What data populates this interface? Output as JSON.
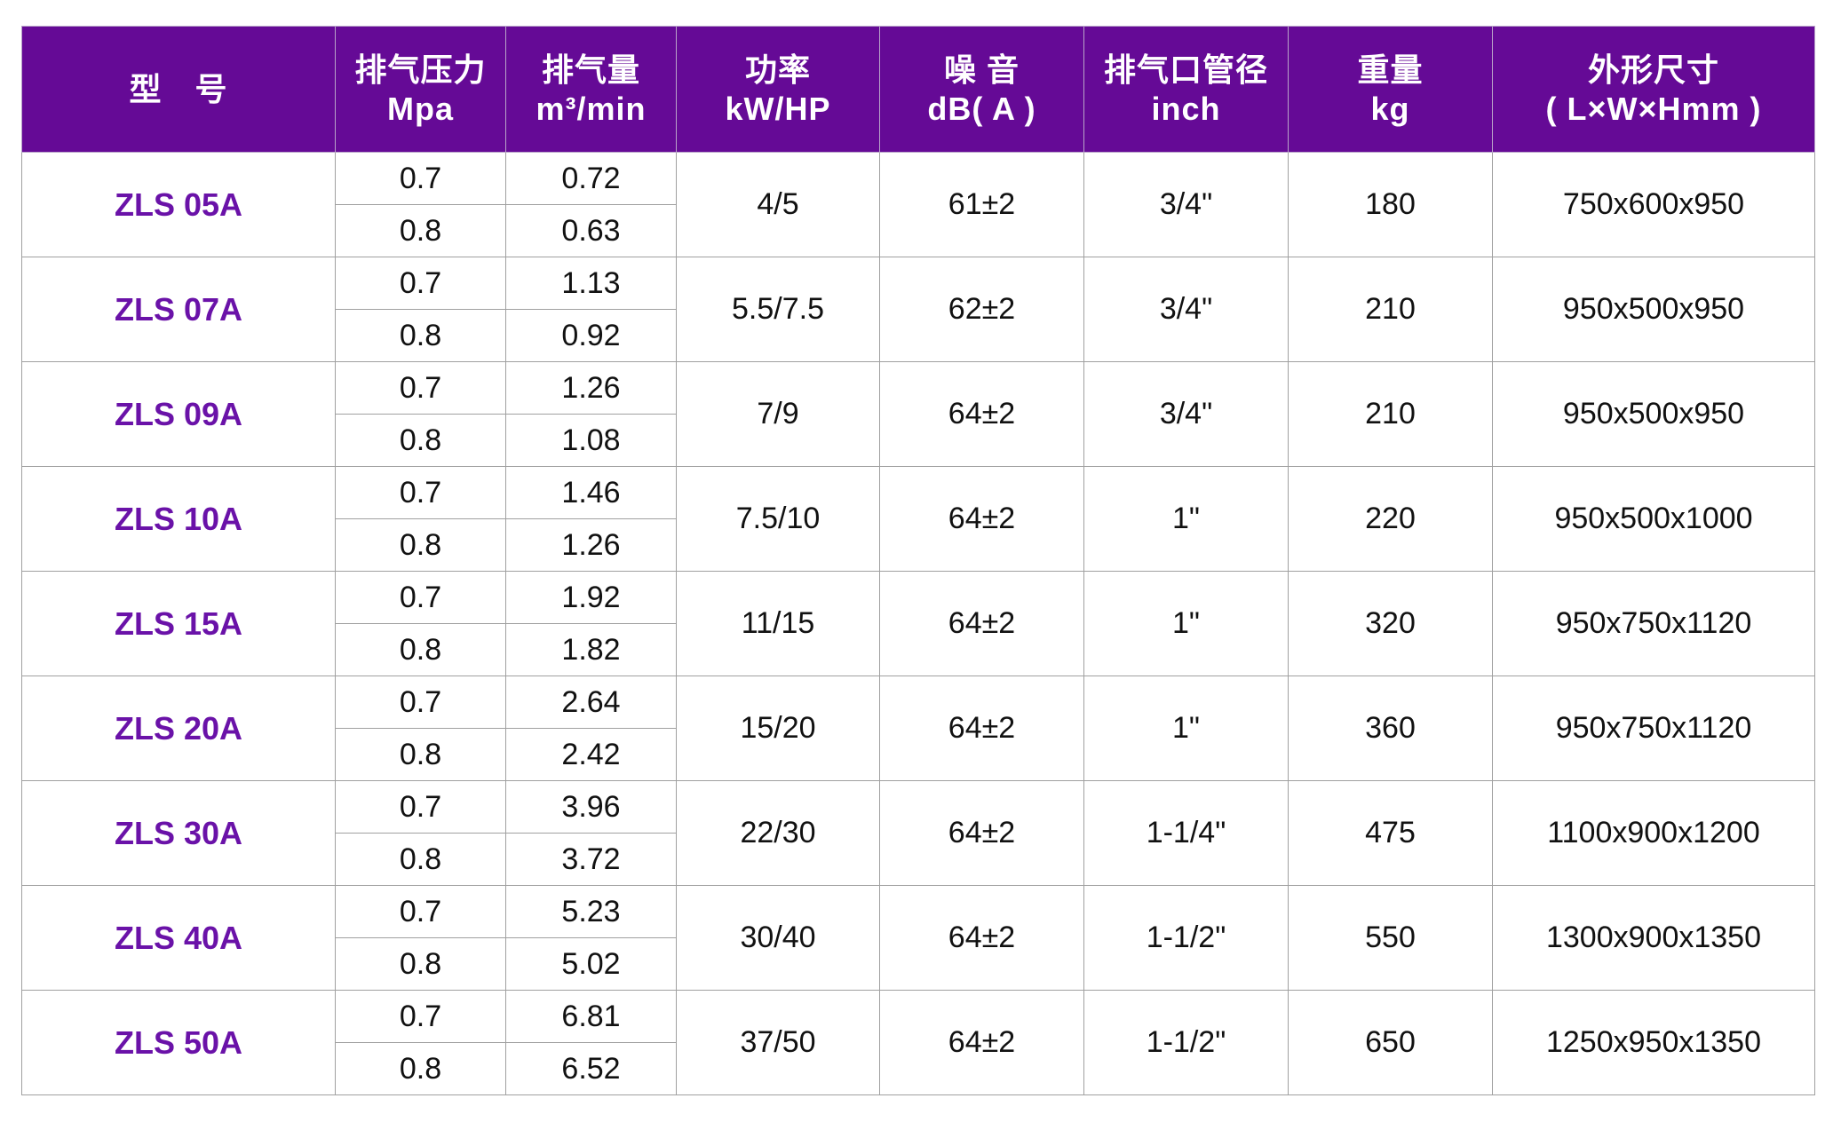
{
  "colors": {
    "header_bg": "#650a96",
    "model_text": "#6a12a8"
  },
  "headers": [
    {
      "cn": "型　号",
      "en": ""
    },
    {
      "cn": "排气压力",
      "en": "Mpa"
    },
    {
      "cn": "排气量",
      "en": "m³/min"
    },
    {
      "cn": "功率",
      "en": "kW/HP"
    },
    {
      "cn": "噪 音",
      "en": "dB( A )"
    },
    {
      "cn": "排气口管径",
      "en": "inch"
    },
    {
      "cn": "重量",
      "en": "kg"
    },
    {
      "cn": "外形尺寸",
      "en": "( L×W×Hmm )"
    }
  ],
  "rows": [
    {
      "model": "ZLS 05A",
      "p1": "0.7",
      "q1": "0.72",
      "p2": "0.8",
      "q2": "0.63",
      "power": "4/5",
      "noise": "61±2",
      "outlet": "3/4\"",
      "weight": "180",
      "size": "750x600x950"
    },
    {
      "model": "ZLS 07A",
      "p1": "0.7",
      "q1": "1.13",
      "p2": "0.8",
      "q2": "0.92",
      "power": "5.5/7.5",
      "noise": "62±2",
      "outlet": "3/4\"",
      "weight": "210",
      "size": "950x500x950"
    },
    {
      "model": "ZLS 09A",
      "p1": "0.7",
      "q1": "1.26",
      "p2": "0.8",
      "q2": "1.08",
      "power": "7/9",
      "noise": "64±2",
      "outlet": "3/4\"",
      "weight": "210",
      "size": "950x500x950"
    },
    {
      "model": "ZLS 10A",
      "p1": "0.7",
      "q1": "1.46",
      "p2": "0.8",
      "q2": "1.26",
      "power": "7.5/10",
      "noise": "64±2",
      "outlet": "1\"",
      "weight": "220",
      "size": "950x500x1000"
    },
    {
      "model": "ZLS 15A",
      "p1": "0.7",
      "q1": "1.92",
      "p2": "0.8",
      "q2": "1.82",
      "power": "11/15",
      "noise": "64±2",
      "outlet": "1\"",
      "weight": "320",
      "size": "950x750x1120"
    },
    {
      "model": "ZLS 20A",
      "p1": "0.7",
      "q1": "2.64",
      "p2": "0.8",
      "q2": "2.42",
      "power": "15/20",
      "noise": "64±2",
      "outlet": "1\"",
      "weight": "360",
      "size": "950x750x1120"
    },
    {
      "model": "ZLS 30A",
      "p1": "0.7",
      "q1": "3.96",
      "p2": "0.8",
      "q2": "3.72",
      "power": "22/30",
      "noise": "64±2",
      "outlet": "1-1/4\"",
      "weight": "475",
      "size": "1100x900x1200"
    },
    {
      "model": "ZLS 40A",
      "p1": "0.7",
      "q1": "5.23",
      "p2": "0.8",
      "q2": "5.02",
      "power": "30/40",
      "noise": "64±2",
      "outlet": "1-1/2\"",
      "weight": "550",
      "size": "1300x900x1350"
    },
    {
      "model": "ZLS 50A",
      "p1": "0.7",
      "q1": "6.81",
      "p2": "0.8",
      "q2": "6.52",
      "power": "37/50",
      "noise": "64±2",
      "outlet": "1-1/2\"",
      "weight": "650",
      "size": "1250x950x1350"
    }
  ]
}
